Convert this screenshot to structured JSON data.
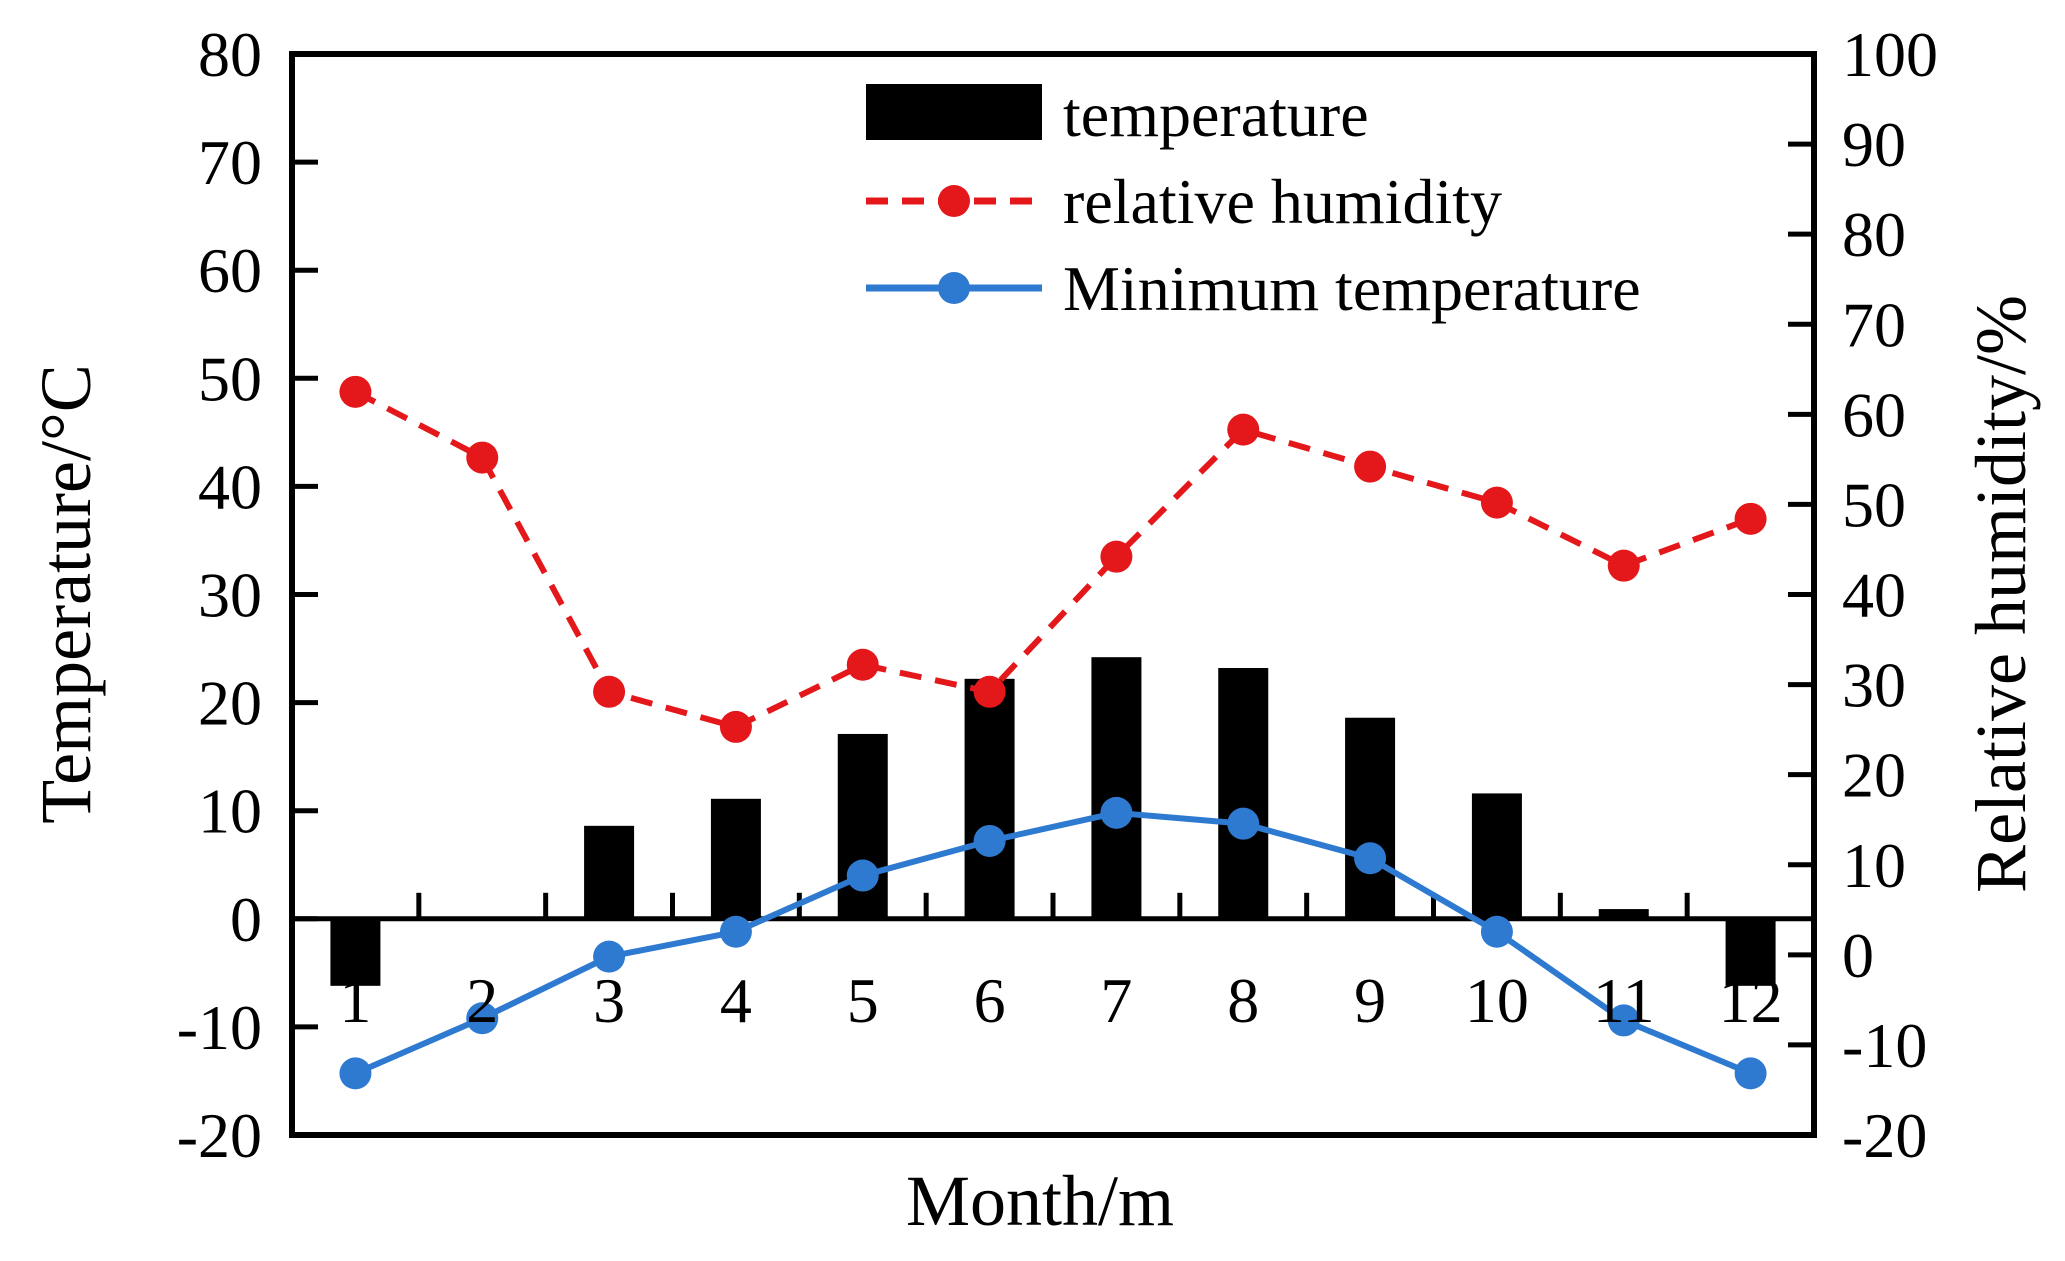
{
  "chart_data": {
    "type": "bar",
    "categories": [
      "1",
      "2",
      "3",
      "4",
      "5",
      "6",
      "7",
      "8",
      "9",
      "10",
      "11",
      "12"
    ],
    "xlabel": "Month/m",
    "ylabel": "Temperature/°C",
    "ylabel_right": "Relative humidity/%",
    "ylim": [
      -20,
      80
    ],
    "ylim_right": [
      -20,
      100
    ],
    "yticks": [
      "80",
      "70",
      "60",
      "50",
      "40",
      "30",
      "20",
      "10",
      "0",
      "-10",
      "-20"
    ],
    "yticks_right": [
      "100",
      "90",
      "80",
      "70",
      "60",
      "50",
      "40",
      "30",
      "20",
      "10",
      "0",
      "-10",
      "-20"
    ],
    "grid": false,
    "legend_position": "top-center",
    "series": [
      {
        "name": "temperature",
        "type": "bar",
        "axis": "left",
        "color": "#000000",
        "values": [
          -6.2,
          0,
          8.6,
          11.1,
          17.1,
          22.2,
          24.2,
          23.2,
          18.6,
          11.6,
          0.9,
          -6.2
        ]
      },
      {
        "name": "relative humidity",
        "type": "line",
        "axis": "right",
        "style": "dashed",
        "color": "#e4181b",
        "values": [
          62.5,
          55.2,
          29.2,
          25.3,
          32.2,
          29.2,
          44.2,
          58.3,
          54.2,
          50.2,
          43.2,
          48.4
        ]
      },
      {
        "name": "Minimum temperature",
        "type": "line",
        "axis": "left",
        "style": "solid",
        "color": "#2f7ad1",
        "values": [
          -14.3,
          -9.2,
          -3.5,
          -1.2,
          4.0,
          7.2,
          9.8,
          8.8,
          5.6,
          -1.2,
          -9.4,
          -14.3
        ]
      }
    ]
  }
}
